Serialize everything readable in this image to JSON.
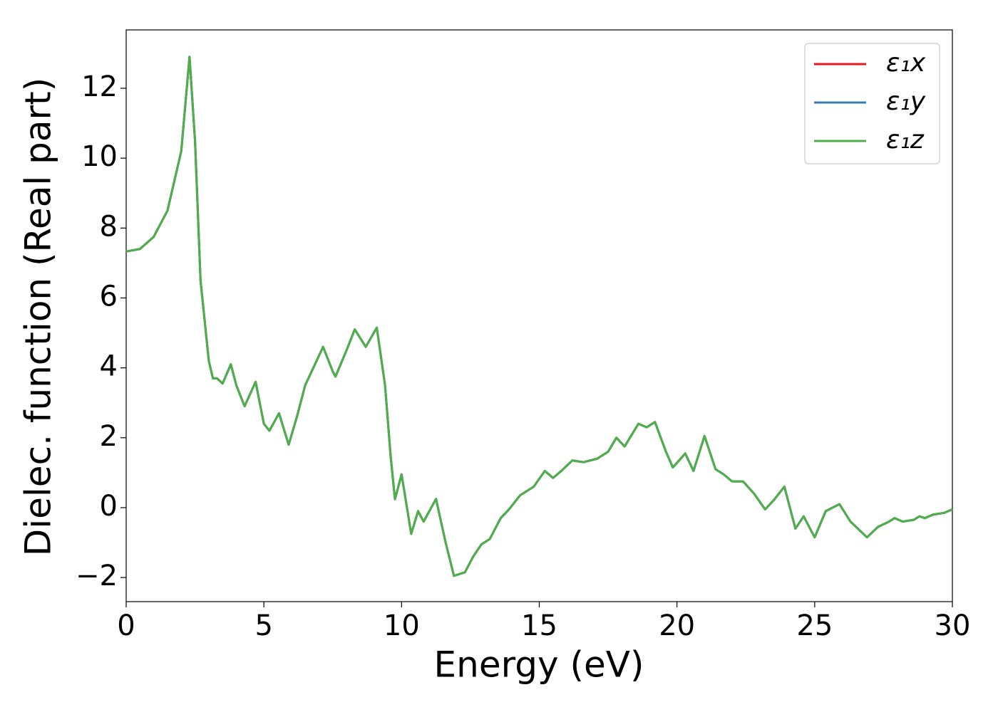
{
  "chart_data": {
    "type": "line",
    "x_label": "Energy (eV)",
    "y_label": "Dielec. function (Real part)",
    "xlim": [
      0,
      30
    ],
    "ylim": [
      -2.69,
      13.67
    ],
    "xticks": [
      0,
      5,
      10,
      15,
      20,
      25,
      30
    ],
    "yticks": [
      {
        "value": -2,
        "label": "−2"
      },
      0,
      2,
      4,
      6,
      8,
      10,
      12
    ],
    "legend": "upper right",
    "x": [
      0,
      0.5,
      1.0,
      1.5,
      2.0,
      2.3,
      2.5,
      2.7,
      3.0,
      3.15,
      3.3,
      3.5,
      3.8,
      4.0,
      4.3,
      4.7,
      5.0,
      5.2,
      5.55,
      5.9,
      6.2,
      6.5,
      7.15,
      7.5,
      7.6,
      8.0,
      8.3,
      8.7,
      9.1,
      9.4,
      9.6,
      9.76,
      10.0,
      10.35,
      10.6,
      10.8,
      11.25,
      11.6,
      11.9,
      12.3,
      12.6,
      12.9,
      13.2,
      13.6,
      13.9,
      14.3,
      14.8,
      15.2,
      15.5,
      15.8,
      16.2,
      16.6,
      17.1,
      17.5,
      17.8,
      18.1,
      18.6,
      18.9,
      19.2,
      19.6,
      19.85,
      20.3,
      20.6,
      21.0,
      21.4,
      21.7,
      22.0,
      22.4,
      22.8,
      23.2,
      23.5,
      23.9,
      24.3,
      24.6,
      25.0,
      25.4,
      25.9,
      26.3,
      26.9,
      27.3,
      27.7,
      27.9,
      28.2,
      28.6,
      28.8,
      29.0,
      29.3,
      29.7,
      30.0
    ],
    "series": [
      {
        "name": "ε₁x",
        "color": "#e41a1c",
        "values": [
          7.33,
          7.4,
          7.75,
          8.5,
          10.2,
          12.9,
          10.5,
          6.5,
          4.2,
          3.7,
          3.7,
          3.55,
          4.1,
          3.5,
          2.9,
          3.6,
          2.4,
          2.2,
          2.7,
          1.8,
          2.6,
          3.5,
          4.6,
          3.9,
          3.75,
          4.5,
          5.1,
          4.6,
          5.15,
          3.5,
          1.5,
          0.24,
          0.95,
          -0.75,
          -0.1,
          -0.4,
          0.25,
          -1.0,
          -1.95,
          -1.85,
          -1.4,
          -1.05,
          -0.9,
          -0.3,
          -0.05,
          0.35,
          0.6,
          1.05,
          0.85,
          1.05,
          1.35,
          1.3,
          1.4,
          1.6,
          2.0,
          1.75,
          2.4,
          2.3,
          2.45,
          1.6,
          1.15,
          1.55,
          1.05,
          2.05,
          1.1,
          0.95,
          0.75,
          0.75,
          0.4,
          -0.05,
          0.2,
          0.6,
          -0.6,
          -0.25,
          -0.85,
          -0.1,
          0.1,
          -0.4,
          -0.85,
          -0.55,
          -0.4,
          -0.3,
          -0.4,
          -0.35,
          -0.25,
          -0.3,
          -0.2,
          -0.15,
          -0.05
        ]
      },
      {
        "name": "ε₁y",
        "color": "#377eb8",
        "values": [
          7.33,
          7.4,
          7.75,
          8.5,
          10.2,
          12.9,
          10.5,
          6.5,
          4.2,
          3.7,
          3.7,
          3.55,
          4.1,
          3.5,
          2.9,
          3.6,
          2.4,
          2.2,
          2.7,
          1.8,
          2.6,
          3.5,
          4.6,
          3.9,
          3.75,
          4.5,
          5.1,
          4.6,
          5.15,
          3.5,
          1.5,
          0.24,
          0.95,
          -0.75,
          -0.1,
          -0.4,
          0.25,
          -1.0,
          -1.95,
          -1.85,
          -1.4,
          -1.05,
          -0.9,
          -0.3,
          -0.05,
          0.35,
          0.6,
          1.05,
          0.85,
          1.05,
          1.35,
          1.3,
          1.4,
          1.6,
          2.0,
          1.75,
          2.4,
          2.3,
          2.45,
          1.6,
          1.15,
          1.55,
          1.05,
          2.05,
          1.1,
          0.95,
          0.75,
          0.75,
          0.4,
          -0.05,
          0.2,
          0.6,
          -0.6,
          -0.25,
          -0.85,
          -0.1,
          0.1,
          -0.4,
          -0.85,
          -0.55,
          -0.4,
          -0.3,
          -0.4,
          -0.35,
          -0.25,
          -0.3,
          -0.2,
          -0.15,
          -0.05
        ]
      },
      {
        "name": "ε₁z",
        "color": "#4daf4a",
        "values": [
          7.33,
          7.4,
          7.75,
          8.5,
          10.2,
          12.9,
          10.5,
          6.5,
          4.2,
          3.7,
          3.7,
          3.55,
          4.1,
          3.5,
          2.9,
          3.6,
          2.4,
          2.2,
          2.7,
          1.8,
          2.6,
          3.5,
          4.6,
          3.9,
          3.75,
          4.5,
          5.1,
          4.6,
          5.15,
          3.5,
          1.5,
          0.24,
          0.95,
          -0.75,
          -0.1,
          -0.4,
          0.25,
          -1.0,
          -1.95,
          -1.85,
          -1.4,
          -1.05,
          -0.9,
          -0.3,
          -0.05,
          0.35,
          0.6,
          1.05,
          0.85,
          1.05,
          1.35,
          1.3,
          1.4,
          1.6,
          2.0,
          1.75,
          2.4,
          2.3,
          2.45,
          1.6,
          1.15,
          1.55,
          1.05,
          2.05,
          1.1,
          0.95,
          0.75,
          0.75,
          0.4,
          -0.05,
          0.2,
          0.6,
          -0.6,
          -0.25,
          -0.85,
          -0.1,
          0.1,
          -0.4,
          -0.85,
          -0.55,
          -0.4,
          -0.3,
          -0.4,
          -0.35,
          -0.25,
          -0.3,
          -0.2,
          -0.15,
          -0.05
        ]
      }
    ]
  }
}
